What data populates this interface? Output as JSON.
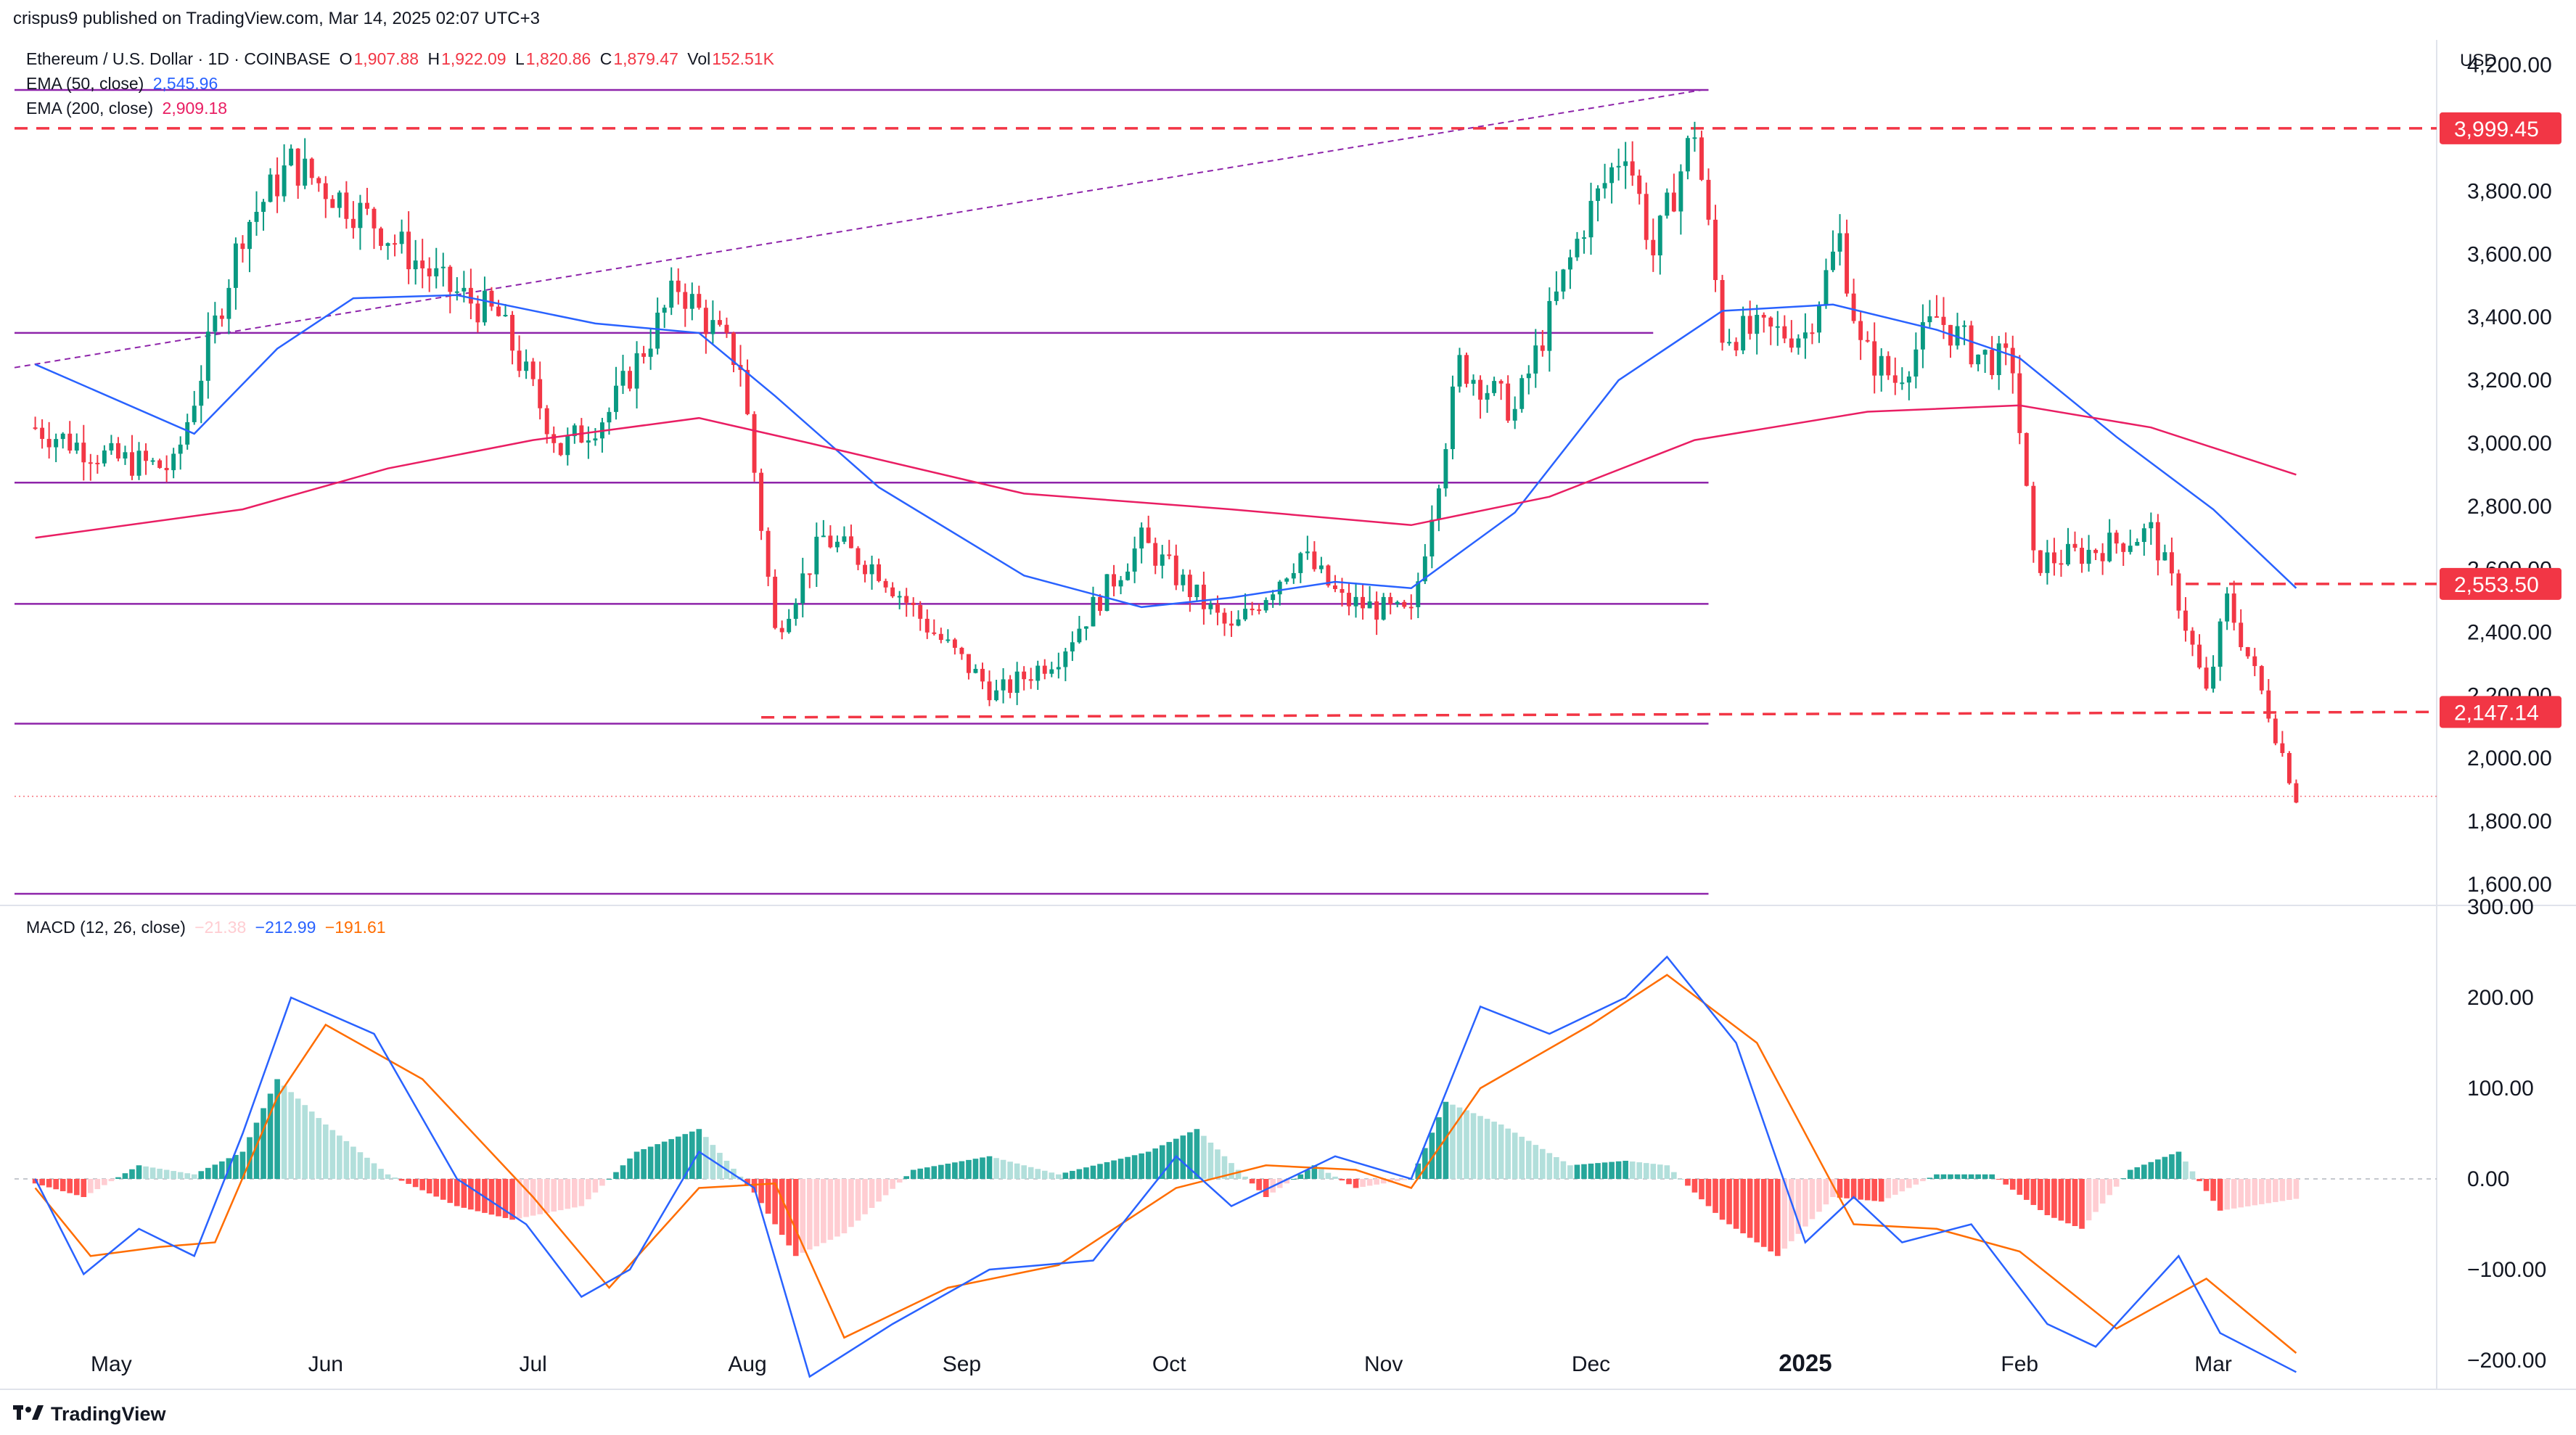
{
  "header": {
    "published": "crispus9 published on TradingView.com, Mar 14, 2025 02:07 UTC+3",
    "symbol": "Ethereum / U.S. Dollar · 1D · COINBASE",
    "ohlc": {
      "open_label": "O",
      "open": "1,907.88",
      "high_label": "H",
      "high": "1,922.09",
      "low_label": "L",
      "low": "1,820.86",
      "close_label": "C",
      "close": "1,879.47",
      "vol_label": "Vol",
      "vol": "152.51K"
    },
    "ema50_label": "EMA (50, close)",
    "ema50_value": "2,545.96",
    "ema200_label": "EMA (200, close)",
    "ema200_value": "2,909.18",
    "macd_label": "MACD (12, 26, close)",
    "macd_hist_value": "−21.38",
    "macd_value": "−212.99",
    "macd_signal_value": "−191.61",
    "currency": "USD"
  },
  "brand": "TradingView",
  "colors": {
    "up": "#089981",
    "down": "#f23645",
    "ema50": "#2962ff",
    "ema200": "#e91e63",
    "purple": "#8e24aa",
    "macd": "#2962ff",
    "signal": "#ff6d00",
    "hist_up_strong": "#26a69a",
    "hist_up_weak": "#b2dfdb",
    "hist_down_strong": "#ff5252",
    "hist_down_weak": "#ffcdd2",
    "resistance": "#f23645"
  },
  "chart_data": [
    {
      "type": "candlestick",
      "title": "Ethereum / U.S. Dollar · 1D · COINBASE",
      "x_tick_labels": [
        "May",
        "Jun",
        "Jul",
        "Aug",
        "Sep",
        "Oct",
        "Nov",
        "Dec",
        "2025",
        "Feb",
        "Mar"
      ],
      "y_tick_labels": [
        "4,200.00",
        "3,800.00",
        "3,600.00",
        "3,400.00",
        "3,200.00",
        "3,000.00",
        "2,800.00",
        "2,600.00",
        "2,400.00",
        "2,200.00",
        "2,000.00",
        "1,800.00",
        "1,600.00"
      ],
      "ylim": [
        1540,
        4280
      ],
      "price_tags": [
        {
          "label": "3,999.45",
          "value": 3999.45
        },
        {
          "label": "2,553.50",
          "value": 2553.5
        },
        {
          "label": "2,147.14",
          "value": 2147.14
        }
      ],
      "horizontal_levels": [
        4121,
        3350,
        2875,
        2490,
        2110,
        1570
      ],
      "dashed_support": 2130,
      "last_close_line": 1879.47,
      "anchors_date_price": [
        [
          "2024-04-20",
          3050
        ],
        [
          "2024-05-01",
          2950
        ],
        [
          "2024-05-10",
          2920
        ],
        [
          "2024-05-20",
          3680
        ],
        [
          "2024-05-27",
          3890
        ],
        [
          "2024-06-08",
          3700
        ],
        [
          "2024-06-18",
          3500
        ],
        [
          "2024-06-26",
          3400
        ],
        [
          "2024-07-05",
          2980
        ],
        [
          "2024-07-12",
          3100
        ],
        [
          "2024-07-22",
          3500
        ],
        [
          "2024-07-31",
          3250
        ],
        [
          "2024-08-05",
          2400
        ],
        [
          "2024-08-12",
          2700
        ],
        [
          "2024-08-20",
          2600
        ],
        [
          "2024-08-27",
          2420
        ],
        [
          "2024-09-06",
          2200
        ],
        [
          "2024-09-15",
          2330
        ],
        [
          "2024-09-27",
          2690
        ],
        [
          "2024-10-10",
          2400
        ],
        [
          "2024-10-20",
          2650
        ],
        [
          "2024-10-26",
          2500
        ],
        [
          "2024-11-05",
          2450
        ],
        [
          "2024-11-12",
          3250
        ],
        [
          "2024-11-20",
          3100
        ],
        [
          "2024-11-30",
          3700
        ],
        [
          "2024-12-06",
          3950
        ],
        [
          "2024-12-10",
          3600
        ],
        [
          "2024-12-16",
          4000
        ],
        [
          "2024-12-20",
          3350
        ],
        [
          "2025-01-01",
          3350
        ],
        [
          "2025-01-06",
          3650
        ],
        [
          "2025-01-09",
          3300
        ],
        [
          "2025-01-14",
          3200
        ],
        [
          "2025-01-20",
          3400
        ],
        [
          "2025-01-26",
          3280
        ],
        [
          "2025-01-31",
          3250
        ],
        [
          "2025-02-03",
          2620
        ],
        [
          "2025-02-10",
          2650
        ],
        [
          "2025-02-20",
          2720
        ],
        [
          "2025-02-24",
          2500
        ],
        [
          "2025-02-28",
          2200
        ],
        [
          "2025-03-03",
          2500
        ],
        [
          "2025-03-09",
          2150
        ],
        [
          "2025-03-13",
          1880
        ]
      ],
      "series": [
        {
          "name": "EMA (50, close)",
          "points": [
            [
              "2024-04-20",
              3250
            ],
            [
              "2024-05-13",
              3030
            ],
            [
              "2024-05-25",
              3300
            ],
            [
              "2024-06-05",
              3460
            ],
            [
              "2024-06-20",
              3470
            ],
            [
              "2024-07-10",
              3380
            ],
            [
              "2024-07-25",
              3350
            ],
            [
              "2024-08-05",
              3150
            ],
            [
              "2024-08-20",
              2860
            ],
            [
              "2024-09-10",
              2580
            ],
            [
              "2024-09-27",
              2480
            ],
            [
              "2024-10-10",
              2510
            ],
            [
              "2024-10-25",
              2560
            ],
            [
              "2024-11-05",
              2540
            ],
            [
              "2024-11-20",
              2780
            ],
            [
              "2024-12-05",
              3200
            ],
            [
              "2024-12-20",
              3420
            ],
            [
              "2025-01-05",
              3440
            ],
            [
              "2025-01-20",
              3360
            ],
            [
              "2025-02-01",
              3270
            ],
            [
              "2025-02-15",
              3020
            ],
            [
              "2025-03-01",
              2790
            ],
            [
              "2025-03-13",
              2540
            ]
          ]
        },
        {
          "name": "EMA (200, close)",
          "points": [
            [
              "2024-04-20",
              2700
            ],
            [
              "2024-05-20",
              2790
            ],
            [
              "2024-06-10",
              2920
            ],
            [
              "2024-07-01",
              3010
            ],
            [
              "2024-07-25",
              3080
            ],
            [
              "2024-08-10",
              3000
            ],
            [
              "2024-09-10",
              2840
            ],
            [
              "2024-10-10",
              2790
            ],
            [
              "2024-11-05",
              2740
            ],
            [
              "2024-11-25",
              2830
            ],
            [
              "2024-12-16",
              3010
            ],
            [
              "2025-01-10",
              3100
            ],
            [
              "2025-02-01",
              3120
            ],
            [
              "2025-02-20",
              3050
            ],
            [
              "2025-03-13",
              2900
            ]
          ]
        }
      ]
    },
    {
      "type": "line",
      "title": "MACD (12, 26, close)",
      "y_tick_labels": [
        "300.00",
        "200.00",
        "100.00",
        "0.00",
        "−100.00",
        "−200.00"
      ],
      "ylim": [
        -228,
        300
      ],
      "series": [
        {
          "name": "MACD",
          "points": [
            [
              "2024-04-20",
              0
            ],
            [
              "2024-04-27",
              -105
            ],
            [
              "2024-05-05",
              -55
            ],
            [
              "2024-05-13",
              -85
            ],
            [
              "2024-05-20",
              50
            ],
            [
              "2024-05-27",
              200
            ],
            [
              "2024-06-08",
              160
            ],
            [
              "2024-06-20",
              0
            ],
            [
              "2024-06-30",
              -50
            ],
            [
              "2024-07-08",
              -130
            ],
            [
              "2024-07-15",
              -100
            ],
            [
              "2024-07-25",
              30
            ],
            [
              "2024-08-02",
              -10
            ],
            [
              "2024-08-10",
              -218
            ],
            [
              "2024-08-22",
              -160
            ],
            [
              "2024-09-05",
              -100
            ],
            [
              "2024-09-20",
              -90
            ],
            [
              "2024-10-02",
              25
            ],
            [
              "2024-10-10",
              -30
            ],
            [
              "2024-10-25",
              25
            ],
            [
              "2024-11-05",
              0
            ],
            [
              "2024-11-15",
              190
            ],
            [
              "2024-11-25",
              160
            ],
            [
              "2024-12-06",
              200
            ],
            [
              "2024-12-12",
              245
            ],
            [
              "2024-12-22",
              150
            ],
            [
              "2025-01-01",
              -70
            ],
            [
              "2025-01-08",
              -20
            ],
            [
              "2025-01-15",
              -70
            ],
            [
              "2025-01-25",
              -50
            ],
            [
              "2025-02-05",
              -160
            ],
            [
              "2025-02-12",
              -185
            ],
            [
              "2025-02-24",
              -85
            ],
            [
              "2025-03-02",
              -170
            ],
            [
              "2025-03-13",
              -213
            ]
          ]
        },
        {
          "name": "Signal",
          "points": [
            [
              "2024-04-20",
              -10
            ],
            [
              "2024-04-28",
              -85
            ],
            [
              "2024-05-08",
              -75
            ],
            [
              "2024-05-16",
              -70
            ],
            [
              "2024-05-25",
              90
            ],
            [
              "2024-06-01",
              170
            ],
            [
              "2024-06-15",
              110
            ],
            [
              "2024-07-01",
              -20
            ],
            [
              "2024-07-12",
              -120
            ],
            [
              "2024-07-25",
              -10
            ],
            [
              "2024-08-05",
              -5
            ],
            [
              "2024-08-15",
              -175
            ],
            [
              "2024-08-30",
              -120
            ],
            [
              "2024-09-15",
              -95
            ],
            [
              "2024-10-02",
              -10
            ],
            [
              "2024-10-15",
              15
            ],
            [
              "2024-10-28",
              10
            ],
            [
              "2024-11-05",
              -10
            ],
            [
              "2024-11-15",
              100
            ],
            [
              "2024-12-01",
              170
            ],
            [
              "2024-12-12",
              225
            ],
            [
              "2024-12-25",
              150
            ],
            [
              "2025-01-08",
              -50
            ],
            [
              "2025-01-20",
              -55
            ],
            [
              "2025-02-01",
              -80
            ],
            [
              "2025-02-15",
              -165
            ],
            [
              "2025-02-28",
              -110
            ],
            [
              "2025-03-13",
              -192
            ]
          ]
        }
      ],
      "histogram": [
        [
          "2024-04-20",
          -5
        ],
        [
          "2024-04-27",
          -20
        ],
        [
          "2024-05-05",
          15
        ],
        [
          "2024-05-13",
          5
        ],
        [
          "2024-05-20",
          30
        ],
        [
          "2024-05-25",
          110
        ],
        [
          "2024-06-01",
          60
        ],
        [
          "2024-06-10",
          5
        ],
        [
          "2024-06-20",
          -30
        ],
        [
          "2024-06-28",
          -45
        ],
        [
          "2024-07-08",
          -30
        ],
        [
          "2024-07-16",
          30
        ],
        [
          "2024-07-25",
          55
        ],
        [
          "2024-08-02",
          -15
        ],
        [
          "2024-08-08",
          -85
        ],
        [
          "2024-08-15",
          -60
        ],
        [
          "2024-08-25",
          10
        ],
        [
          "2024-09-05",
          25
        ],
        [
          "2024-09-15",
          5
        ],
        [
          "2024-09-28",
          30
        ],
        [
          "2024-10-05",
          55
        ],
        [
          "2024-10-15",
          -20
        ],
        [
          "2024-10-22",
          15
        ],
        [
          "2024-10-28",
          -10
        ],
        [
          "2024-11-05",
          0
        ],
        [
          "2024-11-10",
          85
        ],
        [
          "2024-11-18",
          60
        ],
        [
          "2024-11-28",
          15
        ],
        [
          "2024-12-06",
          20
        ],
        [
          "2024-12-12",
          15
        ],
        [
          "2024-12-20",
          -45
        ],
        [
          "2024-12-28",
          -85
        ],
        [
          "2025-01-05",
          -20
        ],
        [
          "2025-01-12",
          -25
        ],
        [
          "2025-01-20",
          5
        ],
        [
          "2025-01-28",
          5
        ],
        [
          "2025-02-05",
          -40
        ],
        [
          "2025-02-10",
          -55
        ],
        [
          "2025-02-17",
          10
        ],
        [
          "2025-02-24",
          30
        ],
        [
          "2025-03-02",
          -35
        ],
        [
          "2025-03-13",
          -22
        ]
      ]
    }
  ]
}
